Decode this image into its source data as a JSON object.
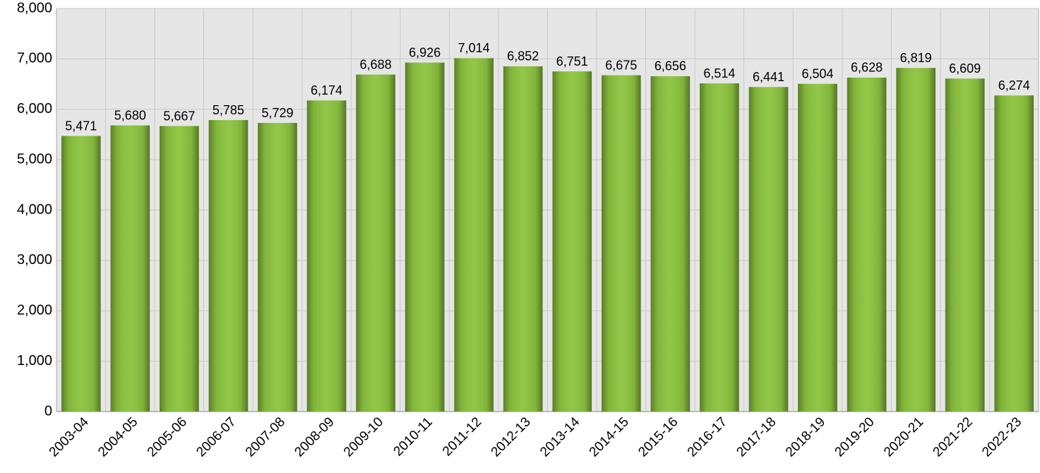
{
  "chart_data": {
    "type": "bar",
    "categories": [
      "2003-04",
      "2004-05",
      "2005-06",
      "2006-07",
      "2007-08",
      "2008-09",
      "2009-10",
      "2010-11",
      "2011-12",
      "2012-13",
      "2013-14",
      "2014-15",
      "2015-16",
      "2016-17",
      "2017-18",
      "2018-19",
      "2019-20",
      "2020-21",
      "2021-22",
      "2022-23"
    ],
    "values": [
      5471,
      5680,
      5667,
      5785,
      5729,
      6174,
      6688,
      6926,
      7014,
      6852,
      6751,
      6675,
      6656,
      6514,
      6441,
      6504,
      6628,
      6819,
      6609,
      6274
    ],
    "value_labels": [
      "5,471",
      "5,680",
      "5,667",
      "5,785",
      "5,729",
      "6,174",
      "6,688",
      "6,926",
      "7,014",
      "6,852",
      "6,751",
      "6,675",
      "6,656",
      "6,514",
      "6,441",
      "6,504",
      "6,628",
      "6,819",
      "6,609",
      "6,274"
    ],
    "color": "#8cc43f",
    "ylim": [
      0,
      8000
    ],
    "yticks": [
      0,
      {
        "value": 1000,
        "label": "1,000"
      },
      {
        "value": 2000,
        "label": "2,000"
      },
      {
        "value": 3000,
        "label": "3,000"
      },
      {
        "value": 4000,
        "label": "4,000"
      },
      {
        "value": 5000,
        "label": "5,000"
      },
      {
        "value": 6000,
        "label": "6,000"
      },
      {
        "value": 7000,
        "label": "7,000"
      },
      {
        "value": 8000,
        "label": "8,000"
      }
    ],
    "grid": true
  }
}
